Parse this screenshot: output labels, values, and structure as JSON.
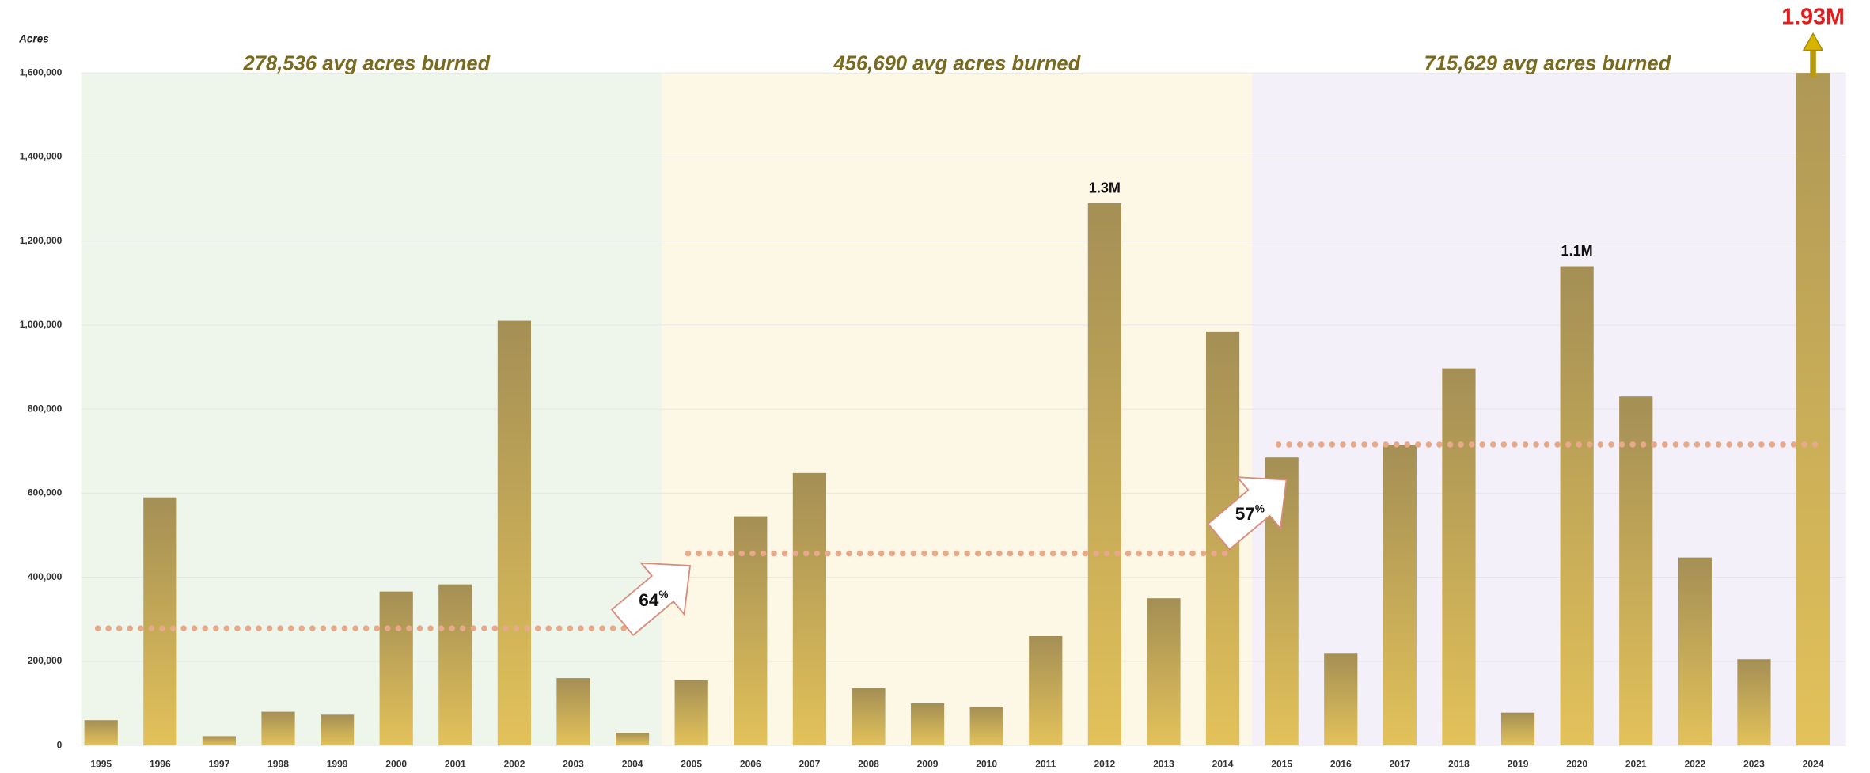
{
  "chart_data": {
    "type": "bar",
    "y_label": "Acres",
    "categories": [
      "1995",
      "1996",
      "1997",
      "1998",
      "1999",
      "2000",
      "2001",
      "2002",
      "2003",
      "2004",
      "2005",
      "2006",
      "2007",
      "2008",
      "2009",
      "2010",
      "2011",
      "2012",
      "2013",
      "2014",
      "2015",
      "2016",
      "2017",
      "2018",
      "2019",
      "2020",
      "2021",
      "2022",
      "2023",
      "2024"
    ],
    "values": [
      60000,
      590000,
      22000,
      80000,
      73000,
      366000,
      383000,
      1010000,
      160000,
      30000,
      155000,
      545000,
      648000,
      136000,
      100000,
      92000,
      260000,
      1290000,
      350000,
      985000,
      685000,
      220000,
      715000,
      897000,
      78000,
      1140000,
      830000,
      447000,
      205000,
      1930000
    ],
    "value_labels": [
      null,
      null,
      null,
      null,
      null,
      null,
      null,
      null,
      null,
      null,
      null,
      null,
      null,
      null,
      null,
      null,
      null,
      "1.3M",
      null,
      null,
      null,
      null,
      null,
      null,
      null,
      "1.1M",
      null,
      null,
      null,
      "1.93M"
    ],
    "ylim": [
      0,
      1600000
    ],
    "yticks": [
      0,
      {
        "value": 200000,
        "label": "200,000"
      },
      {
        "value": 400000,
        "label": "400,000"
      },
      {
        "value": 600000,
        "label": "600,000"
      },
      {
        "value": 800000,
        "label": "800,000"
      },
      {
        "value": 1000000,
        "label": "1,000,000"
      },
      {
        "value": 1200000,
        "label": "1,200,000"
      },
      {
        "value": 1400000,
        "label": "1,400,000"
      },
      {
        "value": 1600000,
        "label": "1,600,000"
      }
    ],
    "grid": true,
    "periods": [
      {
        "label": "278,536 avg acres burned",
        "value": 278536,
        "start": "1995",
        "end": "2004",
        "color": "#eef5ea"
      },
      {
        "label": "456,690 avg acres burned",
        "value": 456690,
        "start": "2005",
        "end": "2014",
        "color": "#fdf7e6"
      },
      {
        "label": "715,629 avg acres burned",
        "value": 715629,
        "start": "2015",
        "end": "2024",
        "color": "#f4f0f9"
      }
    ],
    "changes": [
      {
        "value": 64,
        "unit": "%"
      },
      {
        "value": 57,
        "unit": "%"
      }
    ]
  }
}
